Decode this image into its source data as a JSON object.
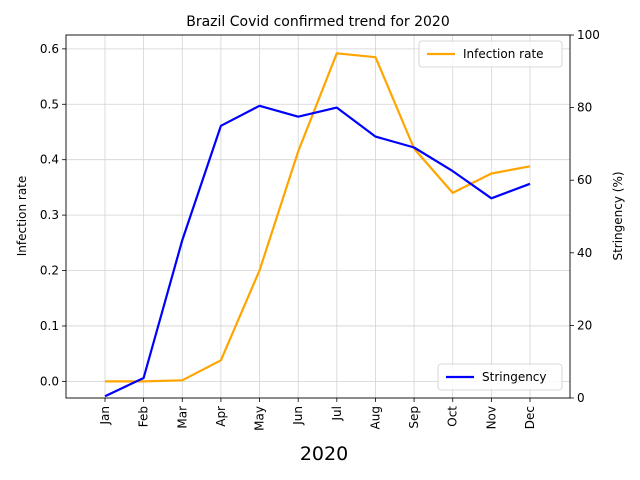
{
  "chart_data": {
    "type": "line",
    "title": "Brazil Covid confirmed trend for 2020",
    "xlabel": "2020",
    "ylabel_left": "Infection rate",
    "ylabel_right": "Stringency (%)",
    "categories": [
      "Jan",
      "Feb",
      "Mar",
      "Apr",
      "May",
      "Jun",
      "Jul",
      "Aug",
      "Sep",
      "Oct",
      "Nov",
      "Dec"
    ],
    "y_left_lim": [
      -0.03,
      0.625
    ],
    "y_left_ticks": [
      "0.0",
      "0.1",
      "0.2",
      "0.3",
      "0.4",
      "0.5",
      "0.6"
    ],
    "y_left_tick_values": [
      0.0,
      0.1,
      0.2,
      0.3,
      0.4,
      0.5,
      0.6
    ],
    "y_right_lim": [
      0,
      100
    ],
    "y_right_ticks": [
      "0",
      "20",
      "40",
      "60",
      "80",
      "100"
    ],
    "y_right_tick_values": [
      0,
      20,
      40,
      60,
      80,
      100
    ],
    "grid": true,
    "series": [
      {
        "name": "Infection rate",
        "axis": "left",
        "color": "#FFA500",
        "values": [
          0.0,
          0.0,
          0.002,
          0.038,
          0.2,
          0.415,
          0.592,
          0.585,
          0.42,
          0.34,
          0.375,
          0.388
        ],
        "legend_position": "top-right"
      },
      {
        "name": "Stringency",
        "axis": "right",
        "color": "#0000FF",
        "values": [
          0.5,
          5.5,
          43.5,
          75.0,
          80.5,
          77.5,
          80.0,
          72.0,
          69.0,
          62.5,
          55.0,
          59.0
        ],
        "legend_position": "bottom-right"
      }
    ]
  }
}
